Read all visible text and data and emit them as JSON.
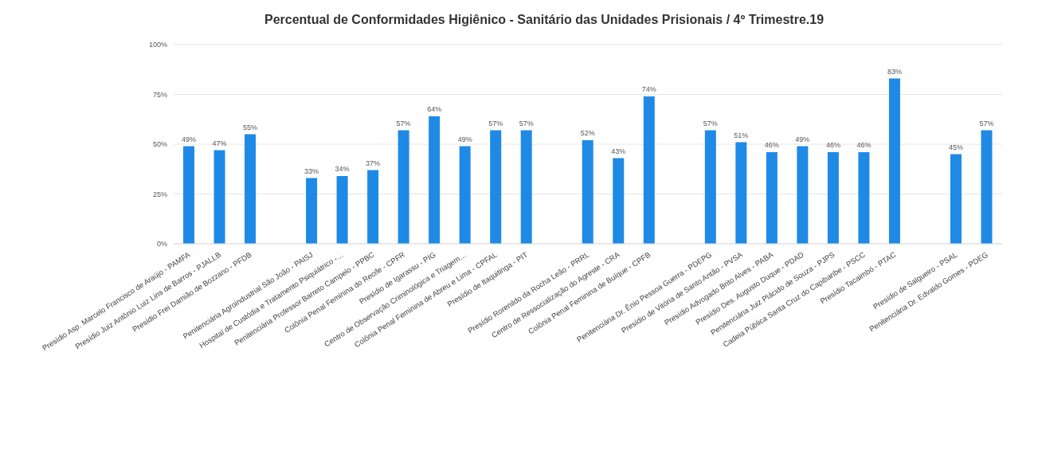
{
  "chart_data": {
    "type": "bar",
    "title": "Percentual de Conformidades Higiênico - Sanitário das Unidades Prisionais / 4º Trimestre.19",
    "categories": [
      "Presídio Asp. Marcelo Francisco de Araújo - PAMFA",
      "Presídio Juiz Antônio Luiz Lins de Barros - PJALLB",
      "Presídio Frei Damião de Bozzano - PFDB",
      null,
      "Penitenciária Agroindustrial São João - PAISJ",
      "Hospital de Custódia e Tratamento Psiquiátrico -…",
      "Penitenciária Professor Barreto Campelo - PPBC",
      "Colônia Penal Feminina do Recife - CPFR",
      "Presídio de Igarassu - PIG",
      "Centro de Observação Criminológica e Triagem…",
      "Colônia Penal Feminina de Abreu e Lima - CPFAL",
      "Presídio de Itaquitinga - PIT",
      null,
      "Presídio Rorenildo da Rocha Leão - PRRL",
      "Centro de Ressocialização do Agreste - CRA",
      "Colônia Penal Feminina de Buíque - CPFB",
      null,
      "Penitenciária Dr. Ênio Pessoa Guerra - PDEPG",
      "Presídio de Vitória de Santo Antão - PVSA",
      "Presídio Advogado Brito Alves - PABA",
      "Presídio Des. Augusto Duque - PDAD",
      "Penitenciária Juiz Plácido de Souza - PJPS",
      "Cadeia Pública Santa Cruz do Capibaribe - PSCC",
      "Presídio Tacaimbó - PTAC",
      null,
      "Presídio de Salgueiro - PSAL",
      "Penitenciária Dr. Edvaldo Gomes - PDEG"
    ],
    "values": [
      49,
      47,
      55,
      null,
      33,
      34,
      37,
      57,
      64,
      49,
      57,
      57,
      null,
      52,
      43,
      74,
      null,
      57,
      51,
      46,
      49,
      46,
      46,
      83,
      null,
      45,
      57
    ],
    "value_labels": [
      "49%",
      "47%",
      "55%",
      null,
      "33%",
      "34%",
      "37%",
      "57%",
      "64%",
      "49%",
      "57%",
      "57%",
      null,
      "52%",
      "43%",
      "74%",
      null,
      "57%",
      "51%",
      "46%",
      "49%",
      "46%",
      "46%",
      "83%",
      null,
      "45%",
      "57%"
    ],
    "color": "#1f8ae6",
    "ylim": [
      0,
      100
    ],
    "yticks": [
      {
        "value": 0,
        "label": "0%"
      },
      {
        "value": 25,
        "label": "25%"
      },
      {
        "value": 50,
        "label": "50%"
      },
      {
        "value": 75,
        "label": "75%"
      },
      {
        "value": 100,
        "label": "100%"
      }
    ],
    "grid": "y"
  }
}
